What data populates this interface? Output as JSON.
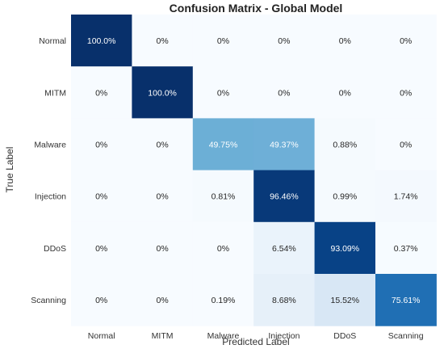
{
  "chart_data": {
    "type": "heatmap",
    "title": "Confusion Matrix - Global Model",
    "xlabel": "Predicted Label",
    "ylabel": "True Label",
    "x_categories": [
      "Normal",
      "MITM",
      "Malware",
      "Injection",
      "DDoS",
      "Scanning"
    ],
    "y_categories": [
      "Normal",
      "MITM",
      "Malware",
      "Injection",
      "DDoS",
      "Scanning"
    ],
    "values": [
      [
        100.0,
        0,
        0,
        0,
        0,
        0
      ],
      [
        0,
        100.0,
        0,
        0,
        0,
        0
      ],
      [
        0,
        0,
        49.75,
        49.37,
        0.88,
        0
      ],
      [
        0,
        0,
        0.81,
        96.46,
        0.99,
        1.74
      ],
      [
        0,
        0,
        0,
        6.54,
        93.09,
        0.37
      ],
      [
        0,
        0,
        0.19,
        8.68,
        15.52,
        75.61
      ]
    ],
    "labels": [
      [
        "100.0%",
        "0%",
        "0%",
        "0%",
        "0%",
        "0%"
      ],
      [
        "0%",
        "100.0%",
        "0%",
        "0%",
        "0%",
        "0%"
      ],
      [
        "0%",
        "0%",
        "49.75%",
        "49.37%",
        "0.88%",
        "0%"
      ],
      [
        "0%",
        "0%",
        "0.81%",
        "96.46%",
        "0.99%",
        "1.74%"
      ],
      [
        "0%",
        "0%",
        "0%",
        "6.54%",
        "93.09%",
        "0.37%"
      ],
      [
        "0%",
        "0%",
        "0.19%",
        "8.68%",
        "15.52%",
        "75.61%"
      ]
    ],
    "value_range": [
      0,
      100
    ],
    "colormap": "Blues",
    "colors": {
      "low": "#f7fbff",
      "high": "#08306b",
      "text_dark": "#262626",
      "text_light": "#ffffff"
    },
    "colorbar": false,
    "grid": false
  }
}
